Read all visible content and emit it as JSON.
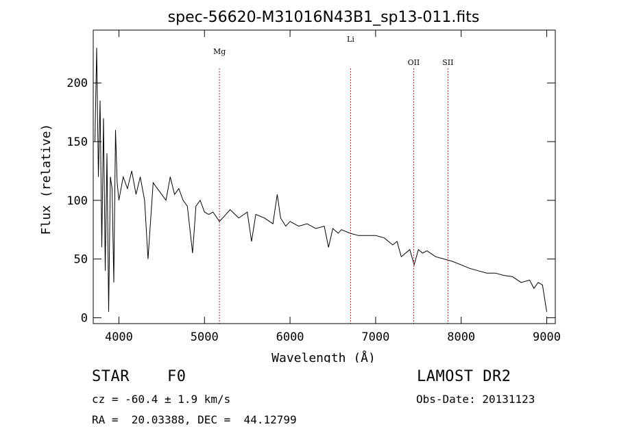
{
  "chart_data": {
    "type": "line",
    "title": "spec-56620-M31016N43B1_sp13-011.fits",
    "xlabel": "Wavelength (Å)",
    "ylabel": "Flux (relative)",
    "xlim": [
      3700,
      9100
    ],
    "ylim": [
      -5,
      245
    ],
    "x_ticks": [
      4000,
      5000,
      6000,
      7000,
      8000,
      9000
    ],
    "y_ticks": [
      0,
      50,
      100,
      150,
      200
    ],
    "grid": false,
    "line_color": "#000000",
    "marker_color": "#b22222",
    "lines": [
      {
        "label": "Mg",
        "x": 5175
      },
      {
        "label": "Li",
        "x": 6708
      },
      {
        "label": "OII",
        "x": 7445
      },
      {
        "label": "SII",
        "x": 7845
      }
    ],
    "series": [
      {
        "x": [
          3720,
          3740,
          3760,
          3780,
          3800,
          3820,
          3840,
          3860,
          3880,
          3900,
          3920,
          3940,
          3960,
          3980,
          4000,
          4050,
          4100,
          4150,
          4200,
          4250,
          4300,
          4340,
          4400,
          4450,
          4500,
          4550,
          4600,
          4650,
          4700,
          4750,
          4800,
          4861,
          4900,
          4950,
          5000,
          5050,
          5100,
          5175,
          5250,
          5300,
          5400,
          5500,
          5550,
          5600,
          5700,
          5800,
          5850,
          5890,
          5950,
          6000,
          6100,
          6200,
          6300,
          6400,
          6450,
          6500,
          6563,
          6600,
          6700,
          6800,
          6900,
          7000,
          7100,
          7200,
          7250,
          7300,
          7400,
          7450,
          7500,
          7550,
          7600,
          7700,
          7800,
          7900,
          8000,
          8100,
          8200,
          8300,
          8400,
          8500,
          8600,
          8700,
          8800,
          8850,
          8900,
          8950,
          9000
        ],
        "y": [
          150,
          230,
          120,
          185,
          60,
          170,
          40,
          140,
          5,
          120,
          110,
          30,
          160,
          115,
          100,
          120,
          110,
          125,
          105,
          120,
          100,
          50,
          115,
          110,
          105,
          100,
          120,
          105,
          110,
          100,
          95,
          55,
          95,
          100,
          90,
          88,
          90,
          82,
          88,
          92,
          85,
          90,
          65,
          88,
          85,
          80,
          105,
          85,
          78,
          82,
          78,
          80,
          76,
          78,
          60,
          76,
          72,
          75,
          72,
          70,
          70,
          70,
          68,
          62,
          65,
          52,
          58,
          45,
          58,
          55,
          57,
          52,
          50,
          48,
          45,
          42,
          40,
          38,
          38,
          36,
          35,
          30,
          32,
          25,
          30,
          28,
          5
        ]
      }
    ]
  },
  "info": {
    "class": "STAR",
    "subclass": "F0",
    "survey": "LAMOST DR2",
    "cz": "cz = -60.4 ± 1.9 km/s",
    "obs_date": "Obs-Date: 20131123",
    "coords": "RA =  20.03388, DEC =  44.12799"
  }
}
